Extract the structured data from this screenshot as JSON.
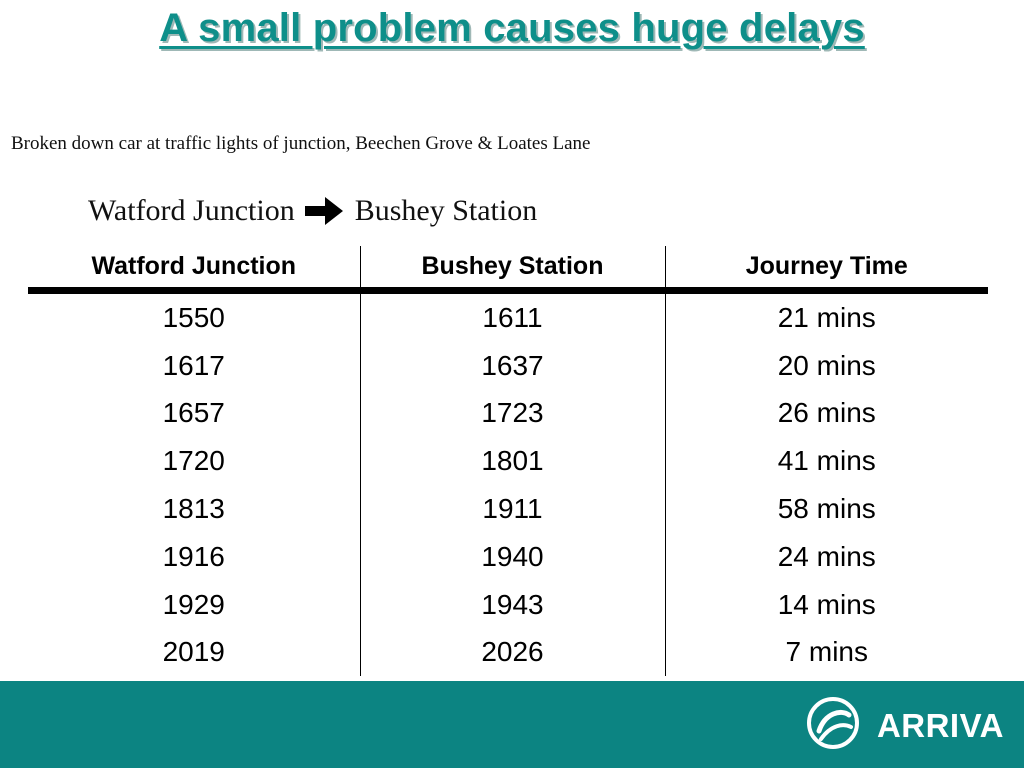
{
  "slide": {
    "title": "A small problem causes huge delays",
    "subtitle": "Broken down car at traffic lights of junction, Beechen Grove & Loates Lane",
    "route": {
      "from": "Watford Junction",
      "to": "Bushey Station",
      "arrow_icon": "arrow-right-icon"
    }
  },
  "table": {
    "headers": [
      "Watford Junction",
      "Bushey Station",
      "Journey Time"
    ],
    "rows": [
      [
        "1550",
        "1611",
        "21 mins"
      ],
      [
        "1617",
        "1637",
        "20 mins"
      ],
      [
        "1657",
        "1723",
        "26 mins"
      ],
      [
        "1720",
        "1801",
        "41 mins"
      ],
      [
        "1813",
        "1911",
        "58 mins"
      ],
      [
        "1916",
        "1940",
        "24 mins"
      ],
      [
        "1929",
        "1943",
        "14 mins"
      ],
      [
        "2019",
        "2026",
        "7 mins"
      ]
    ]
  },
  "footer": {
    "brand": "ARRIVA",
    "logo_icon": "arriva-swirl-icon",
    "color": "#0c8482"
  },
  "colors": {
    "title": "#0e8f8a",
    "footer": "#0c8482"
  }
}
